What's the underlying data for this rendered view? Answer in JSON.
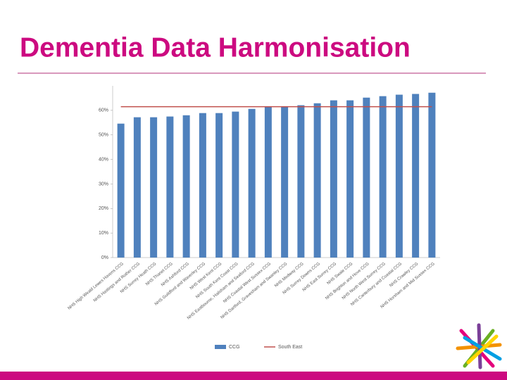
{
  "title": "Dementia Data Harmonisation",
  "chart_data": {
    "type": "bar",
    "categories": [
      "NHS High Weald Lewes Havens CCG",
      "NHS Hastings and Rother CCG",
      "NHS Surrey Heath CCG",
      "NHS Thanet CCG",
      "NHS Ashford CCG",
      "NHS Guildford and Waverley CCG",
      "NHS West Kent CCG",
      "NHS South Kent Coast CCG",
      "NHS Eastbourne, Hailsham and Seaford CCG",
      "NHS Coastal West Sussex CCG",
      "NHS Dartford, Gravesham and Swanley CCG",
      "NHS Medway CCG",
      "NHS Surrey Downs CCG",
      "NHS East Surrey CCG",
      "NHS Swale CCG",
      "NHS Brighton and Hove CCG",
      "NHS North West Surrey CCG",
      "NHS Canterbury and Coastal CCG",
      "NHS Crawley CCG",
      "NHS Horsham and Mid Sussex CCG"
    ],
    "series": [
      {
        "name": "CCG",
        "color": "#4f81bd",
        "type": "bar",
        "values": [
          54.6,
          57.2,
          57.2,
          57.5,
          58.0,
          58.9,
          58.9,
          59.5,
          60.6,
          61.5,
          61.5,
          62.1,
          62.9,
          64.1,
          64.1,
          65.2,
          65.8,
          66.4,
          66.7,
          67.2
        ]
      },
      {
        "name": "South East",
        "color": "#c0504d",
        "type": "line",
        "values": [
          61.5,
          61.5,
          61.5,
          61.5,
          61.5,
          61.5,
          61.5,
          61.5,
          61.5,
          61.5,
          61.5,
          61.5,
          61.5,
          61.5,
          61.5,
          61.5,
          61.5,
          61.5,
          61.5,
          61.5
        ]
      }
    ],
    "ylim": [
      0,
      70
    ],
    "yticks": [
      {
        "value": 0,
        "label": "0%"
      },
      {
        "value": 10,
        "label": "10%"
      },
      {
        "value": 20,
        "label": "20%"
      },
      {
        "value": 30,
        "label": "30%"
      },
      {
        "value": 40,
        "label": "40%"
      },
      {
        "value": 50,
        "label": "50%"
      },
      {
        "value": 60,
        "label": "60%"
      }
    ],
    "legend": "bottom"
  }
}
